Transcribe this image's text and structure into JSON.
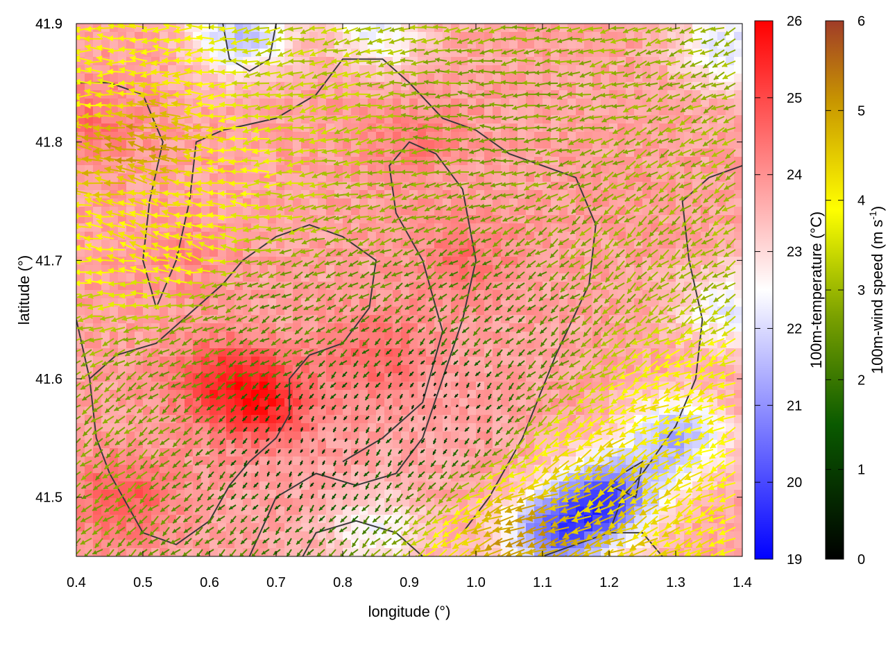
{
  "chart_data": {
    "type": "heatmap",
    "title": "",
    "xlabel": "longitude (°)",
    "ylabel": "latitude (°)",
    "xlim": [
      0.4,
      1.4
    ],
    "ylim": [
      41.45,
      41.9
    ],
    "xticks": [
      "0.4",
      "0.5",
      "0.6",
      "0.7",
      "0.8",
      "0.9",
      "1.0",
      "1.1",
      "1.2",
      "1.3",
      "1.4"
    ],
    "yticks": [
      "41.5",
      "41.6",
      "41.7",
      "41.8",
      "41.9"
    ],
    "grid": false,
    "temperature_field": {
      "label": "100m-temperature (°C)",
      "range": [
        19,
        26
      ],
      "ticks": [
        "19",
        "20",
        "21",
        "22",
        "23",
        "24",
        "25",
        "26"
      ],
      "colormap": [
        "#0000ff",
        "#ffffff",
        "#ff0000"
      ],
      "warm_centers": [
        {
          "lon": 0.68,
          "lat": 41.58,
          "value": 25.6
        },
        {
          "lon": 0.62,
          "lat": 41.6,
          "value": 25.2
        },
        {
          "lon": 0.85,
          "lat": 41.62,
          "value": 24.8
        },
        {
          "lon": 0.98,
          "lat": 41.7,
          "value": 24.6
        },
        {
          "lon": 0.47,
          "lat": 41.5,
          "value": 25.0
        },
        {
          "lon": 0.42,
          "lat": 41.82,
          "value": 24.6
        },
        {
          "lon": 0.9,
          "lat": 41.8,
          "value": 24.4
        },
        {
          "lon": 0.55,
          "lat": 41.7,
          "value": 24.2
        },
        {
          "lon": 1.2,
          "lat": 41.75,
          "value": 24.0
        },
        {
          "lon": 0.8,
          "lat": 41.88,
          "value": 24.6
        }
      ],
      "cool_centers": [
        {
          "lon": 1.2,
          "lat": 41.5,
          "value": 19.8
        },
        {
          "lon": 1.12,
          "lat": 41.47,
          "value": 20.0
        },
        {
          "lon": 1.3,
          "lat": 41.55,
          "value": 21.0
        },
        {
          "lon": 0.65,
          "lat": 41.89,
          "value": 21.3
        },
        {
          "lon": 0.84,
          "lat": 41.89,
          "value": 21.5
        },
        {
          "lon": 1.38,
          "lat": 41.66,
          "value": 22.0
        },
        {
          "lon": 0.85,
          "lat": 41.47,
          "value": 22.3
        },
        {
          "lon": 1.38,
          "lat": 41.88,
          "value": 21.8
        }
      ]
    },
    "wind_field": {
      "label_base": "100m-wind speed (m s",
      "label_exp": "-1",
      "label_close": ")",
      "range": [
        0,
        6
      ],
      "ticks": [
        "0",
        "1",
        "2",
        "3",
        "4",
        "5",
        "6"
      ],
      "colormap": [
        "#000000",
        "#0a5a00",
        "#7aa000",
        "#ffff00",
        "#c89600",
        "#a03c28"
      ],
      "sectors": [
        {
          "lon": 0.5,
          "lat": 41.8,
          "speed": 4.8,
          "dir_deg": 190
        },
        {
          "lon": 0.55,
          "lat": 41.72,
          "speed": 3.8,
          "dir_deg": 200
        },
        {
          "lon": 0.45,
          "lat": 41.85,
          "speed": 3.6,
          "dir_deg": 180
        },
        {
          "lon": 0.75,
          "lat": 41.85,
          "speed": 3.0,
          "dir_deg": 165
        },
        {
          "lon": 1.0,
          "lat": 41.82,
          "speed": 2.4,
          "dir_deg": 180
        },
        {
          "lon": 0.7,
          "lat": 41.65,
          "speed": 2.0,
          "dir_deg": 150
        },
        {
          "lon": 0.75,
          "lat": 41.55,
          "speed": 0.6,
          "dir_deg": 120
        },
        {
          "lon": 0.95,
          "lat": 41.58,
          "speed": 0.4,
          "dir_deg": 120
        },
        {
          "lon": 1.05,
          "lat": 41.65,
          "speed": 1.8,
          "dir_deg": 140
        },
        {
          "lon": 1.25,
          "lat": 41.7,
          "speed": 2.6,
          "dir_deg": 140
        },
        {
          "lon": 1.2,
          "lat": 41.52,
          "speed": 4.2,
          "dir_deg": 150
        },
        {
          "lon": 1.1,
          "lat": 41.47,
          "speed": 4.8,
          "dir_deg": 160
        },
        {
          "lon": 0.45,
          "lat": 41.55,
          "speed": 2.4,
          "dir_deg": 140
        },
        {
          "lon": 1.32,
          "lat": 41.58,
          "speed": 3.8,
          "dir_deg": 155
        }
      ]
    },
    "contours": [
      {
        "name": "",
        "points": [
          [
            0.4,
            41.85
          ],
          [
            0.45,
            41.85
          ],
          [
            0.5,
            41.84
          ],
          [
            0.53,
            41.8
          ],
          [
            0.51,
            41.75
          ],
          [
            0.5,
            41.7
          ],
          [
            0.52,
            41.66
          ],
          [
            0.55,
            41.7
          ],
          [
            0.57,
            41.75
          ],
          [
            0.58,
            41.8
          ],
          [
            0.62,
            41.81
          ],
          [
            0.7,
            41.82
          ],
          [
            0.76,
            41.84
          ],
          [
            0.8,
            41.87
          ],
          [
            0.86,
            41.87
          ],
          [
            0.9,
            41.85
          ],
          [
            0.95,
            41.82
          ],
          [
            1.0,
            41.81
          ],
          [
            1.05,
            41.79
          ],
          [
            1.1,
            41.78
          ],
          [
            1.15,
            41.77
          ],
          [
            1.18,
            41.73
          ],
          [
            1.17,
            41.68
          ],
          [
            1.12,
            41.62
          ],
          [
            1.07,
            41.55
          ],
          [
            1.02,
            41.5
          ],
          [
            0.98,
            41.47
          ]
        ]
      },
      {
        "name": "",
        "points": [
          [
            0.4,
            41.65
          ],
          [
            0.42,
            41.6
          ],
          [
            0.43,
            41.55
          ],
          [
            0.45,
            41.52
          ],
          [
            0.5,
            41.47
          ],
          [
            0.55,
            41.46
          ],
          [
            0.6,
            41.48
          ],
          [
            0.63,
            41.51
          ],
          [
            0.66,
            41.53
          ],
          [
            0.7,
            41.55
          ],
          [
            0.72,
            41.57
          ],
          [
            0.72,
            41.6
          ],
          [
            0.75,
            41.62
          ],
          [
            0.8,
            41.63
          ],
          [
            0.84,
            41.66
          ],
          [
            0.85,
            41.7
          ],
          [
            0.8,
            41.72
          ],
          [
            0.75,
            41.73
          ],
          [
            0.7,
            41.72
          ],
          [
            0.65,
            41.7
          ],
          [
            0.62,
            41.68
          ],
          [
            0.58,
            41.66
          ],
          [
            0.52,
            41.63
          ],
          [
            0.46,
            41.62
          ],
          [
            0.42,
            41.6
          ]
        ]
      },
      {
        "name": "",
        "points": [
          [
            0.66,
            41.45
          ],
          [
            0.7,
            41.5
          ],
          [
            0.76,
            41.52
          ],
          [
            0.82,
            41.51
          ],
          [
            0.88,
            41.52
          ],
          [
            0.92,
            41.55
          ],
          [
            0.95,
            41.6
          ],
          [
            0.98,
            41.65
          ],
          [
            1.0,
            41.7
          ],
          [
            0.98,
            41.76
          ],
          [
            0.94,
            41.79
          ],
          [
            0.9,
            41.8
          ],
          [
            0.87,
            41.78
          ],
          [
            0.88,
            41.74
          ],
          [
            0.92,
            41.7
          ],
          [
            0.95,
            41.64
          ],
          [
            0.92,
            41.58
          ],
          [
            0.86,
            41.55
          ],
          [
            0.8,
            41.53
          ]
        ]
      },
      {
        "name": "",
        "points": [
          [
            1.1,
            41.45
          ],
          [
            1.15,
            41.46
          ],
          [
            1.2,
            41.47
          ],
          [
            1.22,
            41.5
          ],
          [
            1.25,
            41.52
          ],
          [
            1.3,
            41.56
          ],
          [
            1.33,
            41.6
          ],
          [
            1.34,
            41.65
          ],
          [
            1.32,
            41.7
          ],
          [
            1.31,
            41.75
          ],
          [
            1.35,
            41.77
          ],
          [
            1.4,
            41.78
          ]
        ]
      },
      {
        "name": "",
        "points": [
          [
            0.62,
            41.9
          ],
          [
            0.63,
            41.87
          ],
          [
            0.66,
            41.86
          ],
          [
            0.69,
            41.87
          ],
          [
            0.7,
            41.9
          ]
        ]
      },
      {
        "name": "",
        "points": [
          [
            0.74,
            41.45
          ],
          [
            0.76,
            41.47
          ],
          [
            0.82,
            41.48
          ],
          [
            0.88,
            41.47
          ],
          [
            0.92,
            41.45
          ]
        ]
      },
      {
        "name": "",
        "points": [
          [
            1.2,
            41.51
          ],
          [
            1.24,
            41.5
          ],
          [
            1.25,
            41.53
          ],
          [
            1.22,
            41.52
          ],
          [
            1.2,
            41.51
          ]
        ]
      },
      {
        "name": "",
        "points": [
          [
            1.2,
            41.47
          ],
          [
            1.25,
            41.47
          ],
          [
            1.28,
            41.45
          ]
        ]
      }
    ]
  }
}
